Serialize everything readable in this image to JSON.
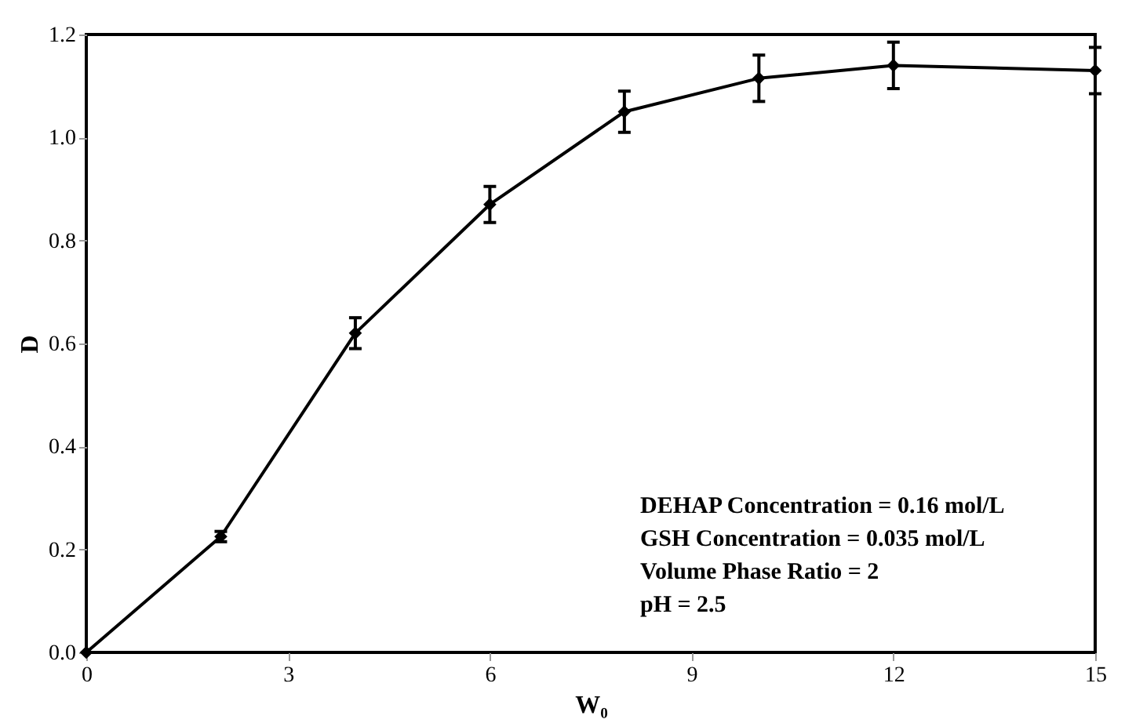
{
  "chart_data": {
    "type": "line",
    "xlabel": "W₀",
    "ylabel": "D",
    "x": [
      0,
      2,
      4,
      6,
      8,
      10,
      12,
      15
    ],
    "series": [
      {
        "color": "#000000",
        "values": [
          0,
          0.225,
          0.62,
          0.87,
          1.05,
          1.115,
          1.14,
          1.13
        ],
        "errors": [
          null,
          0.01,
          0.03,
          0.035,
          0.04,
          0.045,
          0.045,
          0.045
        ]
      }
    ],
    "xlim": [
      0,
      15
    ],
    "xticks": [
      0,
      3,
      6,
      9,
      12,
      15
    ],
    "ylim": [
      0,
      1.2
    ],
    "yticks": [
      {
        "value": 0,
        "label": "0.0"
      },
      {
        "value": 0.2,
        "label": "0.2"
      },
      {
        "value": 0.4,
        "label": "0.4"
      },
      {
        "value": 0.6,
        "label": "0.6"
      },
      {
        "value": 0.8,
        "label": "0.8"
      },
      {
        "value": 1.0,
        "label": "1.0"
      },
      {
        "value": 1.2,
        "label": "1.2"
      }
    ],
    "marker": "diamond",
    "line_style": "solid",
    "grid": false,
    "annotations": [
      "DEHAP Concentration = 0.16 mol/L",
      "GSH Concentration = 0.035 mol/L",
      "Volume Phase Ratio = 2",
      "pH  = 2.5"
    ]
  }
}
